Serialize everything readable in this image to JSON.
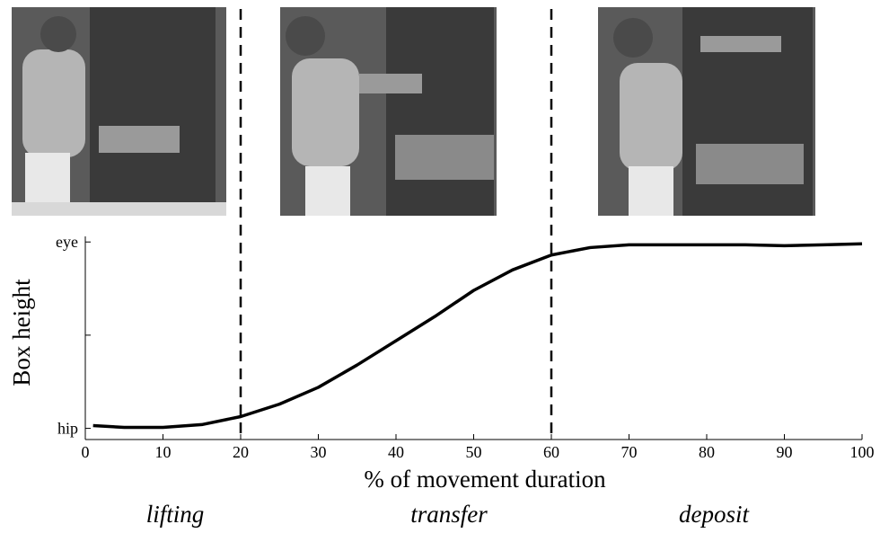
{
  "chart_data": {
    "type": "line",
    "xlabel": "% of movement duration",
    "ylabel": "Box height",
    "x": [
      1,
      5,
      10,
      15,
      20,
      25,
      30,
      35,
      40,
      45,
      50,
      55,
      60,
      65,
      70,
      75,
      80,
      85,
      90,
      95,
      100
    ],
    "series": [
      {
        "color": "#000000",
        "values": [
          0.015,
          0.005,
          0.005,
          0.02,
          0.063,
          0.13,
          0.22,
          0.34,
          0.47,
          0.6,
          0.74,
          0.85,
          0.93,
          0.97,
          0.985,
          0.985,
          0.985,
          0.985,
          0.98,
          0.985,
          0.99
        ]
      }
    ],
    "xlim": [
      0,
      100
    ],
    "xticks": [
      0,
      10,
      20,
      30,
      40,
      50,
      60,
      70,
      80,
      90,
      100
    ],
    "ylim": [
      -0.06,
      1.03
    ],
    "yticks": [
      {
        "value": 0,
        "label": "hip"
      },
      {
        "value": 0.5,
        "label": null
      },
      {
        "value": 1,
        "label": "eye"
      }
    ],
    "phase_boundaries": [
      20,
      60
    ],
    "phases": [
      "lifting",
      "transfer",
      "deposit"
    ]
  }
}
